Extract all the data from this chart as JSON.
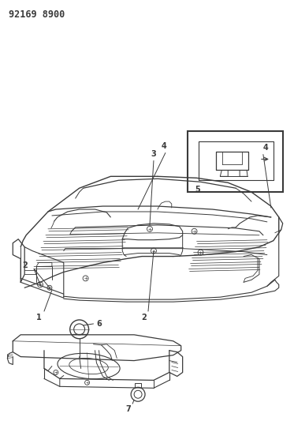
{
  "title": "92169 8900",
  "bg_color": "#ffffff",
  "line_color": "#3a3a3a",
  "figsize": [
    3.73,
    5.33
  ],
  "dpi": 100
}
